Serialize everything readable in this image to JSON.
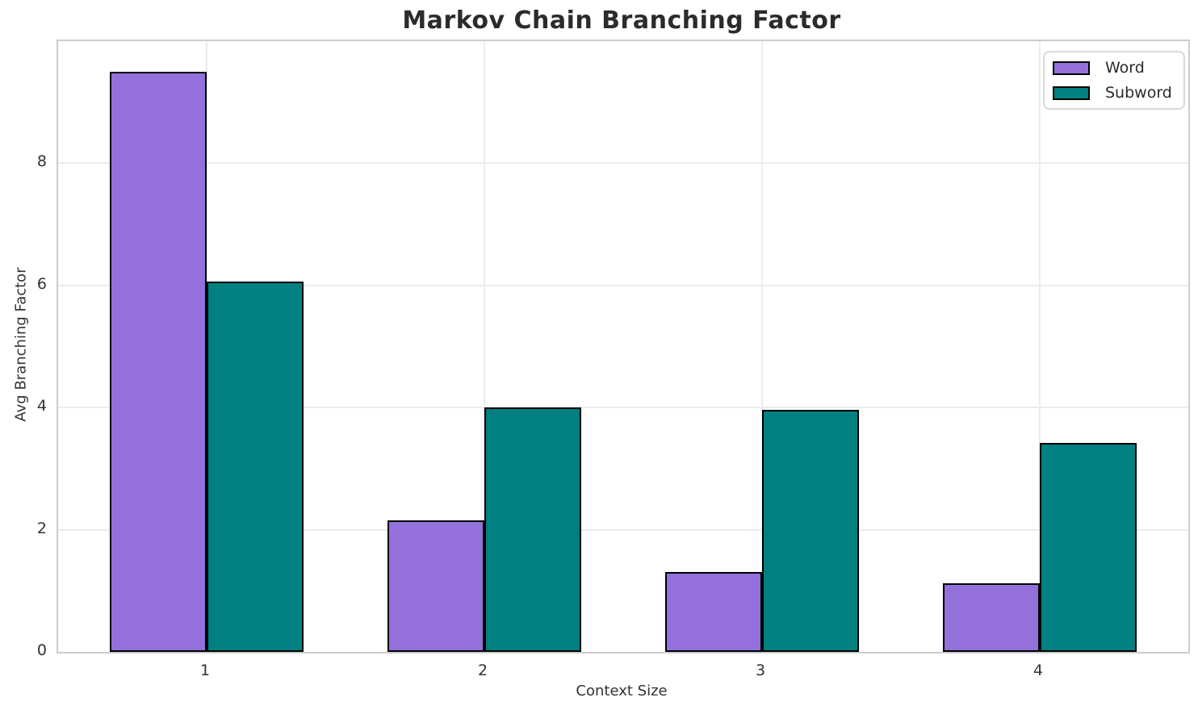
{
  "chart_data": {
    "type": "bar",
    "title": "Markov Chain Branching Factor",
    "xlabel": "Context Size",
    "ylabel": "Avg Branching Factor",
    "categories": [
      "1",
      "2",
      "3",
      "4"
    ],
    "series": [
      {
        "name": "Word",
        "color": "#9370DB",
        "values": [
          9.5,
          2.15,
          1.31,
          1.12
        ]
      },
      {
        "name": "Subword",
        "color": "#008080",
        "values": [
          6.07,
          4.0,
          3.96,
          3.42
        ]
      }
    ],
    "bar_edge_color": "#000000",
    "bar_width_units": 0.35,
    "yticks": [
      0,
      2,
      4,
      6,
      8
    ],
    "ylim": [
      0,
      10.0
    ],
    "grid": "both",
    "legend_position": "upper right",
    "colors": {
      "background": "#ffffff",
      "grid": "#ececec",
      "spine": "#cccccc",
      "tick_text": "#333333",
      "title_text": "#2b2b2b"
    }
  }
}
